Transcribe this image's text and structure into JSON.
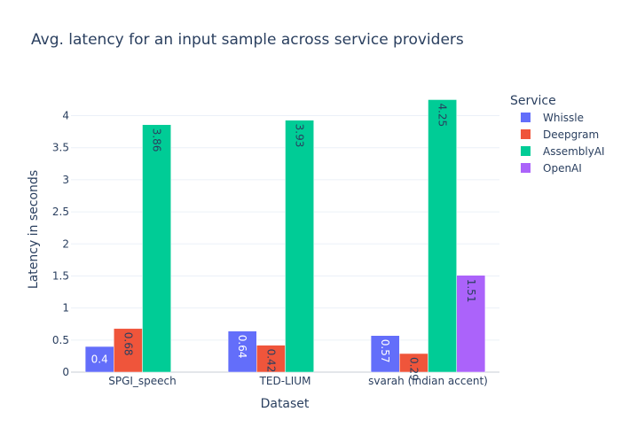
{
  "chart_data": {
    "type": "bar",
    "title": "Avg. latency for an input sample across service providers",
    "xlabel": "Dataset",
    "ylabel": "Latency in seconds",
    "categories": [
      "SPGI_speech",
      "TED-LIUM",
      "svarah (indian accent)"
    ],
    "ylim": [
      0,
      4.45
    ],
    "yticks": [
      0,
      0.5,
      1,
      1.5,
      2,
      2.5,
      3,
      3.5,
      4
    ],
    "grid": true,
    "legend_title": "Service",
    "legend_position": "right",
    "series": [
      {
        "name": "Whissle",
        "color": "#636efa",
        "values": [
          0.4,
          0.64,
          0.57
        ],
        "labels": [
          "0.4",
          "0.64",
          "0.57"
        ]
      },
      {
        "name": "Deepgram",
        "color": "#ef553b",
        "values": [
          0.68,
          0.42,
          0.29
        ],
        "labels": [
          "0.68",
          "0.42",
          "0.29"
        ]
      },
      {
        "name": "AssemblyAI",
        "color": "#00cc96",
        "values": [
          3.86,
          3.93,
          4.25
        ],
        "labels": [
          "3.86",
          "3.93",
          "4.25"
        ]
      },
      {
        "name": "OpenAI",
        "color": "#ab63fa",
        "values": [
          null,
          null,
          1.51
        ],
        "labels": [
          "",
          "",
          "1.51"
        ]
      }
    ]
  }
}
